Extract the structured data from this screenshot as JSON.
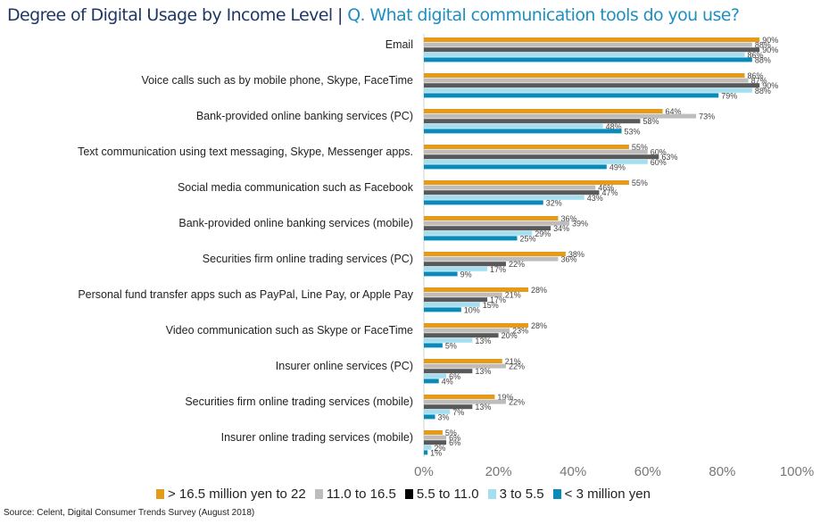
{
  "chart_data": {
    "type": "bar",
    "orientation": "horizontal",
    "title": "Degree of Digital Usage by Income Level",
    "subtitle": "Q. What digital communication tools do you use?",
    "title_separator": " | ",
    "xlabel": "",
    "ylabel": "",
    "xlim": [
      0,
      100
    ],
    "x_ticks": [
      "0%",
      "20%",
      "40%",
      "60%",
      "80%",
      "100%"
    ],
    "grid": false,
    "legend_position": "bottom",
    "categories": [
      "Email",
      "Voice calls such as by mobile phone, Skype, FaceTime",
      "Bank-provided  online banking services (PC)",
      "Text communication using text messaging, Skype, Messenger apps.",
      "Social media communication such as Facebook",
      "Bank-provided  online banking services (mobile)",
      "Securities firm online trading services (PC)",
      "Personal fund transfer apps such as PayPal, Line Pay, or Apple Pay",
      "Video communication such as Skype or FaceTime",
      "Insurer online services (PC)",
      "Securities firm online trading services (mobile)",
      "Insurer online trading services (mobile)"
    ],
    "series": [
      {
        "name": "> 16.5 million yen to 22",
        "color": "#e39b18",
        "values": [
          90,
          86,
          64,
          55,
          55,
          36,
          38,
          28,
          28,
          21,
          19,
          5
        ]
      },
      {
        "name": "11.0 to 16.5",
        "color": "#bdbdbd",
        "values": [
          88,
          87,
          73,
          60,
          46,
          39,
          36,
          21,
          23,
          22,
          22,
          6
        ]
      },
      {
        "name": "5.5 to 11.0",
        "color": "#595959",
        "values": [
          90,
          90,
          58,
          63,
          47,
          34,
          22,
          17,
          20,
          13,
          13,
          6
        ]
      },
      {
        "name": "3 to 5.5",
        "color": "#a3dff0",
        "values": [
          86,
          88,
          48,
          60,
          43,
          29,
          17,
          15,
          13,
          6,
          7,
          2
        ]
      },
      {
        "name": "< 3 million yen",
        "color": "#0a8ab8",
        "values": [
          88,
          79,
          53,
          49,
          32,
          25,
          9,
          10,
          5,
          4,
          3,
          1
        ]
      }
    ],
    "value_suffix": "%"
  },
  "source": "Source: Celent, Digital Consumer Trends Survey (August 2018)"
}
